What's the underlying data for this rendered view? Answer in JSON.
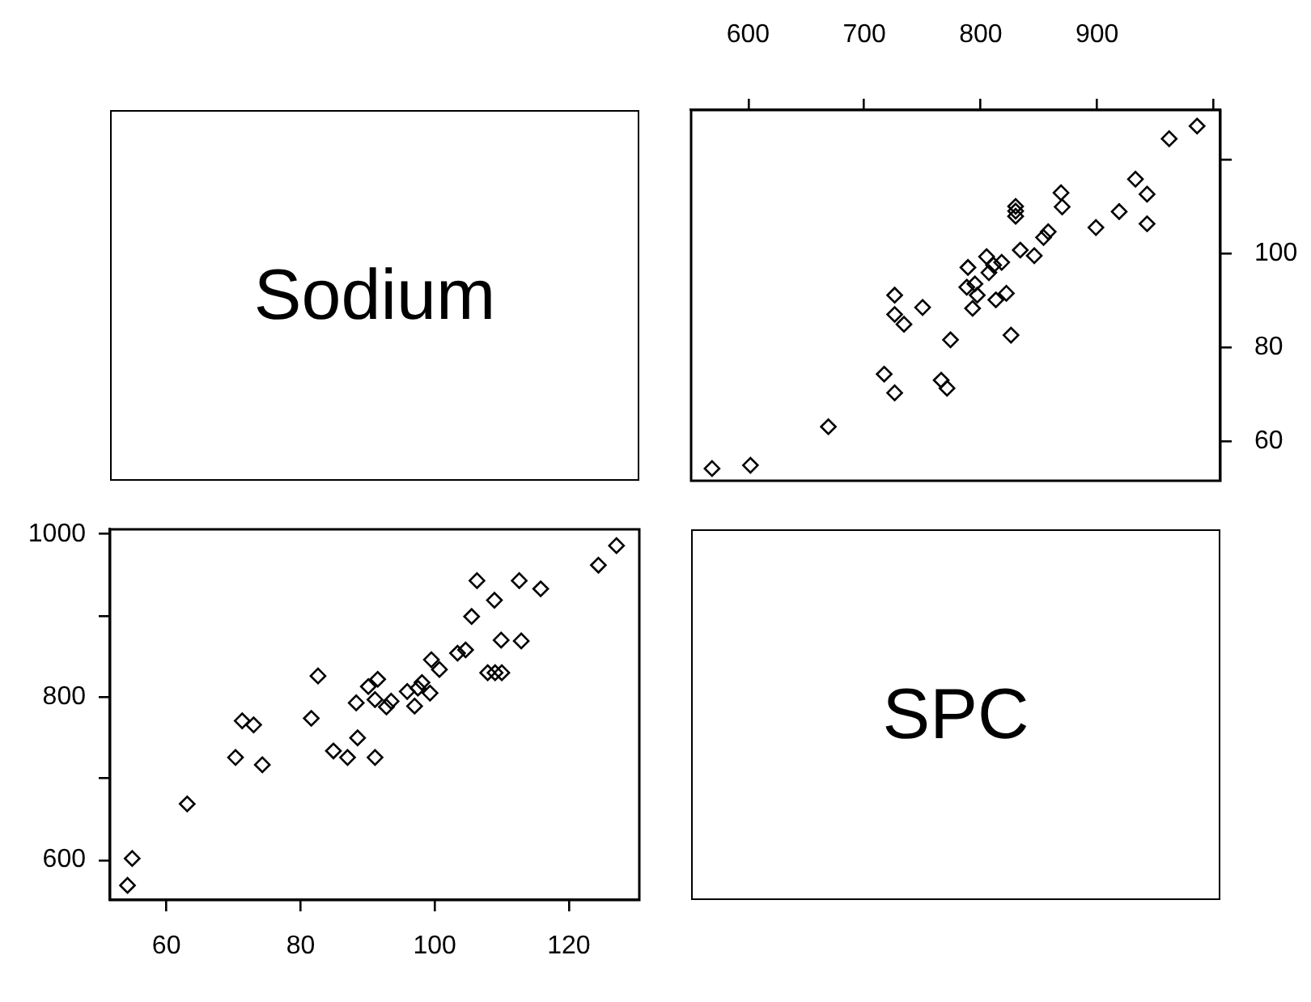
{
  "chart_data": [
    {
      "type": "other",
      "title": "Sodium"
    },
    {
      "type": "scatter",
      "color": "#000000",
      "marker": "diamond",
      "grid": false,
      "x": [
        569,
        602,
        669,
        726,
        717,
        771,
        766,
        774,
        826,
        734,
        726,
        750,
        726,
        793,
        813,
        822,
        797,
        788,
        795,
        807,
        789,
        811,
        818,
        805,
        846,
        834,
        854,
        858,
        899,
        943,
        919,
        870,
        830,
        830,
        830,
        943,
        869,
        933,
        962,
        986
      ],
      "values": [
        54.2,
        54.9,
        63.1,
        70.3,
        74.3,
        71.3,
        73.0,
        81.6,
        82.6,
        84.9,
        87.0,
        88.5,
        91.1,
        88.3,
        90.1,
        91.5,
        91.1,
        92.8,
        93.5,
        95.9,
        97.0,
        97.5,
        98.1,
        99.3,
        99.5,
        100.7,
        103.4,
        104.6,
        105.5,
        106.3,
        108.9,
        109.9,
        107.9,
        109.0,
        110.0,
        112.6,
        112.9,
        115.8,
        124.4,
        127.1
      ],
      "xlim": [
        551,
        1006
      ],
      "ylim": [
        51.6,
        130.5
      ],
      "xticks": [
        600,
        700,
        800,
        900,
        {
          "value": 1000,
          "label": null
        }
      ],
      "yticks": [
        60,
        80,
        100,
        {
          "value": 120,
          "label": null
        }
      ]
    },
    {
      "type": "scatter",
      "color": "#000000",
      "marker": "diamond",
      "grid": false,
      "x": [
        54.2,
        54.9,
        63.1,
        70.3,
        74.3,
        71.3,
        73.0,
        81.6,
        82.6,
        84.9,
        87.0,
        88.5,
        91.1,
        88.3,
        90.1,
        91.5,
        91.1,
        92.8,
        93.5,
        95.9,
        97.0,
        97.5,
        98.1,
        99.3,
        99.5,
        100.7,
        103.4,
        104.6,
        105.5,
        106.3,
        108.9,
        109.9,
        107.9,
        109.0,
        110.0,
        112.6,
        112.9,
        115.8,
        124.4,
        127.1
      ],
      "values": [
        569,
        602,
        669,
        726,
        717,
        771,
        766,
        774,
        826,
        734,
        726,
        750,
        726,
        793,
        813,
        822,
        797,
        788,
        795,
        807,
        789,
        811,
        818,
        805,
        846,
        834,
        854,
        858,
        899,
        943,
        919,
        870,
        830,
        830,
        830,
        943,
        869,
        933,
        962,
        986
      ],
      "xlim": [
        51.6,
        130.5
      ],
      "ylim": [
        551,
        1006
      ],
      "xticks": [
        60,
        80,
        100,
        120
      ],
      "yticks": [
        600,
        {
          "value": 700,
          "label": null
        },
        800,
        {
          "value": 900,
          "label": null
        },
        1000
      ]
    },
    {
      "type": "other",
      "title": "SPC"
    }
  ]
}
